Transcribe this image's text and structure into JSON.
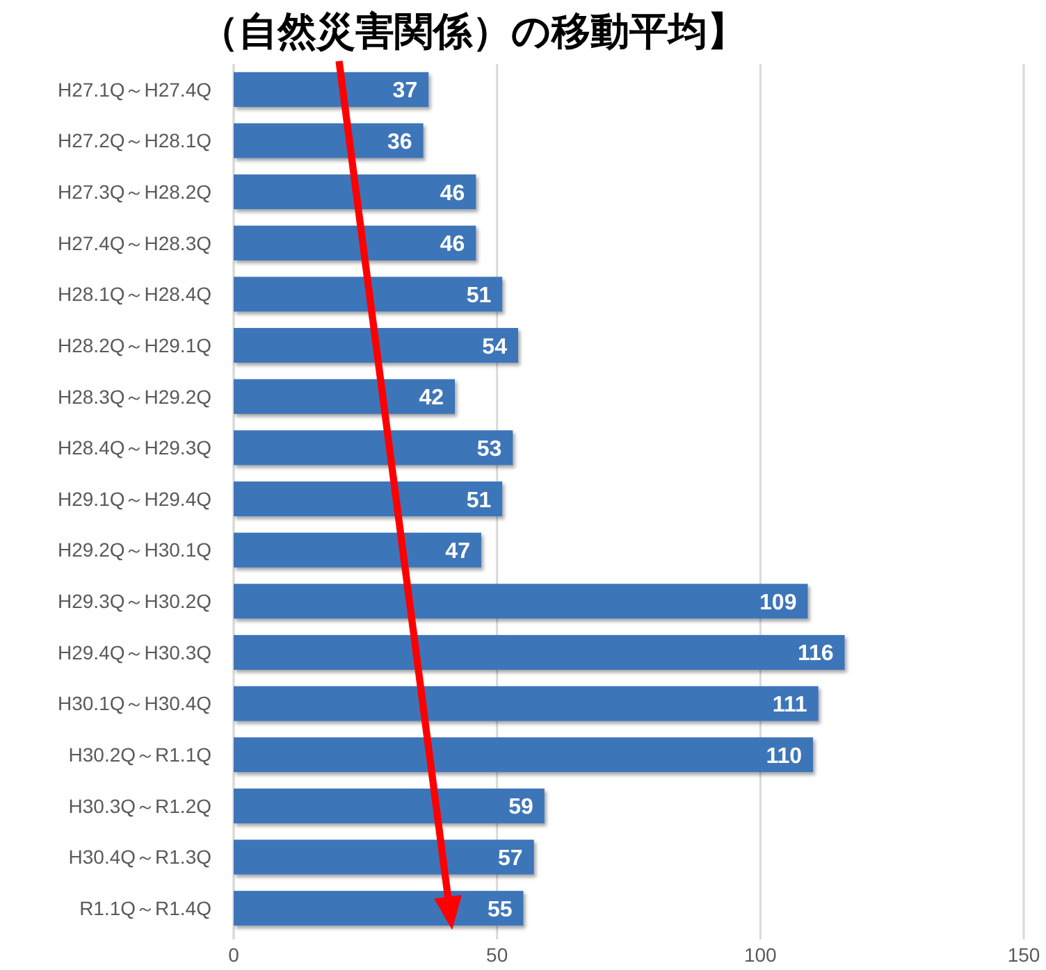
{
  "chart_data": {
    "type": "bar",
    "orientation": "horizontal",
    "title": "（自然災害関係）の移動平均】",
    "categories": [
      "H27.1Q～H27.4Q",
      "H27.2Q～H28.1Q",
      "H27.3Q～H28.2Q",
      "H27.4Q～H28.3Q",
      "H28.1Q～H28.4Q",
      "H28.2Q～H29.1Q",
      "H28.3Q～H29.2Q",
      "H28.4Q～H29.3Q",
      "H29.1Q～H29.4Q",
      "H29.2Q～H30.1Q",
      "H29.3Q～H30.2Q",
      "H29.4Q～H30.3Q",
      "H30.1Q～H30.4Q",
      "H30.2Q～R1.1Q",
      "H30.3Q～R1.2Q",
      "H30.4Q～R1.3Q",
      "R1.1Q～R1.4Q"
    ],
    "values": [
      37,
      36,
      46,
      46,
      51,
      54,
      42,
      53,
      51,
      47,
      109,
      116,
      111,
      110,
      59,
      57,
      55
    ],
    "color": "#3c74b9",
    "xlim": [
      0,
      150
    ],
    "xticks": [
      0,
      50,
      100,
      150
    ],
    "grid": "x",
    "data_labels": true
  }
}
